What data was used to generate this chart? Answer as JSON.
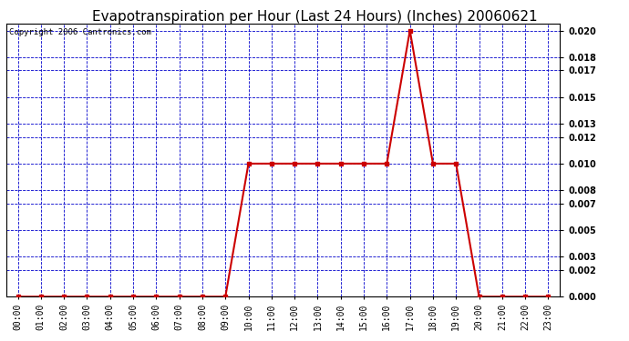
{
  "title": "Evapotranspiration per Hour (Last 24 Hours) (Inches) 20060621",
  "copyright": "Copyright 2006 Cantronics.com",
  "hours": [
    0,
    1,
    2,
    3,
    4,
    5,
    6,
    7,
    8,
    9,
    10,
    11,
    12,
    13,
    14,
    15,
    16,
    17,
    18,
    19,
    20,
    21,
    22,
    23
  ],
  "values": [
    0.0,
    0.0,
    0.0,
    0.0,
    0.0,
    0.0,
    0.0,
    0.0,
    0.0,
    0.0,
    0.01,
    0.01,
    0.01,
    0.01,
    0.01,
    0.01,
    0.01,
    0.02,
    0.01,
    0.01,
    0.0,
    0.0,
    0.0,
    0.0
  ],
  "xlabels": [
    "00:00",
    "01:00",
    "02:00",
    "03:00",
    "04:00",
    "05:00",
    "06:00",
    "07:00",
    "08:00",
    "09:00",
    "10:00",
    "11:00",
    "12:00",
    "13:00",
    "14:00",
    "15:00",
    "16:00",
    "17:00",
    "18:00",
    "19:00",
    "20:00",
    "21:00",
    "22:00",
    "23:00"
  ],
  "yticks": [
    0.0,
    0.002,
    0.003,
    0.005,
    0.007,
    0.008,
    0.01,
    0.012,
    0.013,
    0.015,
    0.017,
    0.018,
    0.02
  ],
  "ylim": [
    0.0,
    0.0205
  ],
  "line_color": "#cc0000",
  "marker_color": "#cc0000",
  "grid_color": "#0000cc",
  "bg_color": "#ffffff",
  "plot_bg_color": "#ffffff",
  "title_fontsize": 11,
  "tick_fontsize": 7,
  "copyright_fontsize": 6.5
}
